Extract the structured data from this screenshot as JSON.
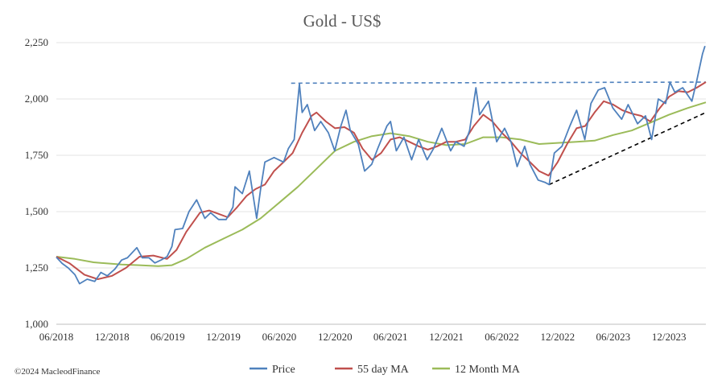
{
  "chart_data": {
    "type": "line",
    "title": "Gold - US$",
    "xlabel": "",
    "ylabel": "",
    "x_range": [
      "2018-06-01",
      "2024-03-31"
    ],
    "ylim": [
      1000,
      2250
    ],
    "y_ticks": [
      1000,
      1250,
      1500,
      1750,
      2000,
      2250
    ],
    "y_tick_labels": [
      "1,000",
      "1,250",
      "1,500",
      "1,750",
      "2,000",
      "2,250"
    ],
    "x_ticks": [
      "2018-06-01",
      "2018-12-01",
      "2019-06-01",
      "2019-12-01",
      "2020-06-01",
      "2020-12-01",
      "2021-06-01",
      "2021-12-01",
      "2022-06-01",
      "2022-12-01",
      "2023-06-01",
      "2023-12-01"
    ],
    "x_tick_labels": [
      "06/2018",
      "12/2018",
      "06/2019",
      "12/2019",
      "06/2020",
      "12/2020",
      "06/2021",
      "12/2021",
      "06/2022",
      "12/2022",
      "06/2023",
      "12/2023"
    ],
    "grid": "horizontal",
    "legend_position": "bottom",
    "series": [
      {
        "name": "Price",
        "color": "#4f81bd",
        "points": [
          [
            "2018-06-01",
            1298
          ],
          [
            "2018-06-20",
            1270
          ],
          [
            "2018-07-10",
            1250
          ],
          [
            "2018-08-01",
            1220
          ],
          [
            "2018-08-16",
            1180
          ],
          [
            "2018-09-10",
            1200
          ],
          [
            "2018-10-05",
            1190
          ],
          [
            "2018-10-25",
            1230
          ],
          [
            "2018-11-15",
            1215
          ],
          [
            "2018-12-10",
            1245
          ],
          [
            "2019-01-01",
            1285
          ],
          [
            "2019-01-20",
            1295
          ],
          [
            "2019-02-20",
            1340
          ],
          [
            "2019-03-10",
            1295
          ],
          [
            "2019-04-01",
            1295
          ],
          [
            "2019-04-20",
            1272
          ],
          [
            "2019-05-10",
            1285
          ],
          [
            "2019-05-30",
            1300
          ],
          [
            "2019-06-15",
            1345
          ],
          [
            "2019-06-25",
            1420
          ],
          [
            "2019-07-20",
            1425
          ],
          [
            "2019-08-10",
            1500
          ],
          [
            "2019-09-04",
            1552
          ],
          [
            "2019-10-01",
            1470
          ],
          [
            "2019-10-20",
            1495
          ],
          [
            "2019-11-15",
            1465
          ],
          [
            "2019-12-10",
            1465
          ],
          [
            "2020-01-01",
            1520
          ],
          [
            "2020-01-08",
            1610
          ],
          [
            "2020-02-01",
            1580
          ],
          [
            "2020-02-24",
            1680
          ],
          [
            "2020-03-19",
            1470
          ],
          [
            "2020-04-01",
            1600
          ],
          [
            "2020-04-15",
            1720
          ],
          [
            "2020-05-15",
            1740
          ],
          [
            "2020-06-15",
            1720
          ],
          [
            "2020-07-01",
            1780
          ],
          [
            "2020-07-20",
            1820
          ],
          [
            "2020-08-06",
            2067
          ],
          [
            "2020-08-15",
            1940
          ],
          [
            "2020-09-01",
            1975
          ],
          [
            "2020-09-25",
            1860
          ],
          [
            "2020-10-15",
            1900
          ],
          [
            "2020-11-09",
            1850
          ],
          [
            "2020-11-30",
            1770
          ],
          [
            "2020-12-20",
            1880
          ],
          [
            "2021-01-06",
            1950
          ],
          [
            "2021-01-20",
            1860
          ],
          [
            "2021-02-15",
            1800
          ],
          [
            "2021-03-08",
            1680
          ],
          [
            "2021-03-31",
            1710
          ],
          [
            "2021-04-20",
            1780
          ],
          [
            "2021-05-20",
            1880
          ],
          [
            "2021-06-01",
            1900
          ],
          [
            "2021-06-20",
            1770
          ],
          [
            "2021-07-15",
            1830
          ],
          [
            "2021-08-09",
            1730
          ],
          [
            "2021-09-01",
            1820
          ],
          [
            "2021-09-29",
            1730
          ],
          [
            "2021-10-20",
            1780
          ],
          [
            "2021-11-16",
            1870
          ],
          [
            "2021-12-15",
            1770
          ],
          [
            "2022-01-01",
            1810
          ],
          [
            "2022-01-28",
            1790
          ],
          [
            "2022-02-15",
            1860
          ],
          [
            "2022-03-08",
            2050
          ],
          [
            "2022-03-20",
            1930
          ],
          [
            "2022-04-18",
            1990
          ],
          [
            "2022-05-15",
            1810
          ],
          [
            "2022-06-10",
            1870
          ],
          [
            "2022-07-01",
            1810
          ],
          [
            "2022-07-21",
            1700
          ],
          [
            "2022-08-15",
            1790
          ],
          [
            "2022-09-01",
            1710
          ],
          [
            "2022-09-28",
            1640
          ],
          [
            "2022-10-20",
            1630
          ],
          [
            "2022-11-03",
            1620
          ],
          [
            "2022-11-20",
            1760
          ],
          [
            "2022-12-15",
            1790
          ],
          [
            "2023-01-10",
            1880
          ],
          [
            "2023-02-01",
            1950
          ],
          [
            "2023-02-28",
            1820
          ],
          [
            "2023-03-20",
            1980
          ],
          [
            "2023-04-13",
            2040
          ],
          [
            "2023-05-04",
            2050
          ],
          [
            "2023-05-31",
            1960
          ],
          [
            "2023-06-29",
            1910
          ],
          [
            "2023-07-20",
            1975
          ],
          [
            "2023-08-20",
            1890
          ],
          [
            "2023-09-15",
            1925
          ],
          [
            "2023-10-05",
            1820
          ],
          [
            "2023-10-27",
            2000
          ],
          [
            "2023-11-20",
            1980
          ],
          [
            "2023-12-04",
            2075
          ],
          [
            "2023-12-20",
            2030
          ],
          [
            "2024-01-15",
            2050
          ],
          [
            "2024-02-14",
            1990
          ],
          [
            "2024-03-01",
            2080
          ],
          [
            "2024-03-20",
            2200
          ],
          [
            "2024-03-28",
            2235
          ]
        ]
      },
      {
        "name": "55 day MA",
        "color": "#c0504d",
        "points": [
          [
            "2018-06-01",
            1300
          ],
          [
            "2018-07-15",
            1270
          ],
          [
            "2018-09-01",
            1220
          ],
          [
            "2018-10-15",
            1200
          ],
          [
            "2018-12-01",
            1215
          ],
          [
            "2019-01-15",
            1250
          ],
          [
            "2019-03-01",
            1300
          ],
          [
            "2019-04-15",
            1305
          ],
          [
            "2019-05-30",
            1290
          ],
          [
            "2019-06-30",
            1330
          ],
          [
            "2019-08-01",
            1410
          ],
          [
            "2019-09-15",
            1495
          ],
          [
            "2019-10-15",
            1505
          ],
          [
            "2019-11-15",
            1490
          ],
          [
            "2019-12-15",
            1475
          ],
          [
            "2020-01-15",
            1520
          ],
          [
            "2020-02-15",
            1570
          ],
          [
            "2020-03-15",
            1600
          ],
          [
            "2020-04-15",
            1620
          ],
          [
            "2020-05-15",
            1680
          ],
          [
            "2020-06-15",
            1720
          ],
          [
            "2020-07-15",
            1760
          ],
          [
            "2020-08-15",
            1850
          ],
          [
            "2020-09-15",
            1925
          ],
          [
            "2020-10-01",
            1940
          ],
          [
            "2020-11-01",
            1900
          ],
          [
            "2020-12-01",
            1870
          ],
          [
            "2021-01-01",
            1875
          ],
          [
            "2021-02-01",
            1850
          ],
          [
            "2021-03-01",
            1780
          ],
          [
            "2021-04-01",
            1730
          ],
          [
            "2021-05-01",
            1760
          ],
          [
            "2021-06-01",
            1820
          ],
          [
            "2021-07-01",
            1830
          ],
          [
            "2021-08-01",
            1810
          ],
          [
            "2021-09-01",
            1790
          ],
          [
            "2021-10-01",
            1775
          ],
          [
            "2021-11-01",
            1790
          ],
          [
            "2021-12-01",
            1810
          ],
          [
            "2022-01-01",
            1810
          ],
          [
            "2022-02-01",
            1820
          ],
          [
            "2022-03-01",
            1880
          ],
          [
            "2022-04-01",
            1930
          ],
          [
            "2022-05-01",
            1900
          ],
          [
            "2022-06-01",
            1850
          ],
          [
            "2022-07-01",
            1810
          ],
          [
            "2022-08-01",
            1760
          ],
          [
            "2022-09-01",
            1720
          ],
          [
            "2022-10-01",
            1680
          ],
          [
            "2022-11-01",
            1660
          ],
          [
            "2022-12-01",
            1720
          ],
          [
            "2023-01-01",
            1800
          ],
          [
            "2023-02-01",
            1870
          ],
          [
            "2023-03-01",
            1880
          ],
          [
            "2023-04-01",
            1940
          ],
          [
            "2023-05-01",
            1990
          ],
          [
            "2023-06-01",
            1975
          ],
          [
            "2023-07-01",
            1950
          ],
          [
            "2023-08-01",
            1935
          ],
          [
            "2023-09-01",
            1925
          ],
          [
            "2023-10-01",
            1900
          ],
          [
            "2023-11-01",
            1960
          ],
          [
            "2023-12-01",
            2010
          ],
          [
            "2024-01-01",
            2035
          ],
          [
            "2024-02-01",
            2030
          ],
          [
            "2024-03-01",
            2050
          ],
          [
            "2024-03-31",
            2075
          ]
        ]
      },
      {
        "name": "12 Month MA",
        "color": "#9bbb59",
        "points": [
          [
            "2018-06-01",
            1300
          ],
          [
            "2018-08-01",
            1290
          ],
          [
            "2018-10-01",
            1275
          ],
          [
            "2019-01-01",
            1265
          ],
          [
            "2019-03-01",
            1262
          ],
          [
            "2019-05-01",
            1258
          ],
          [
            "2019-06-15",
            1262
          ],
          [
            "2019-08-01",
            1290
          ],
          [
            "2019-10-01",
            1340
          ],
          [
            "2019-12-01",
            1380
          ],
          [
            "2020-02-01",
            1420
          ],
          [
            "2020-04-01",
            1470
          ],
          [
            "2020-06-01",
            1540
          ],
          [
            "2020-08-01",
            1610
          ],
          [
            "2020-10-01",
            1690
          ],
          [
            "2020-12-01",
            1770
          ],
          [
            "2021-02-01",
            1810
          ],
          [
            "2021-04-01",
            1835
          ],
          [
            "2021-06-01",
            1848
          ],
          [
            "2021-08-01",
            1835
          ],
          [
            "2021-10-01",
            1810
          ],
          [
            "2021-12-01",
            1795
          ],
          [
            "2022-02-01",
            1800
          ],
          [
            "2022-04-01",
            1830
          ],
          [
            "2022-06-01",
            1830
          ],
          [
            "2022-08-01",
            1820
          ],
          [
            "2022-10-01",
            1800
          ],
          [
            "2022-12-01",
            1805
          ],
          [
            "2023-02-01",
            1810
          ],
          [
            "2023-04-01",
            1815
          ],
          [
            "2023-06-01",
            1840
          ],
          [
            "2023-08-01",
            1860
          ],
          [
            "2023-10-01",
            1895
          ],
          [
            "2023-12-01",
            1930
          ],
          [
            "2024-02-01",
            1960
          ],
          [
            "2024-03-31",
            1985
          ]
        ]
      }
    ],
    "annotations": [
      {
        "type": "dashed-line",
        "name": "resistance-line",
        "color": "#4f81bd",
        "points": [
          [
            "2020-07-10",
            2070
          ],
          [
            "2024-03-31",
            2075
          ]
        ]
      },
      {
        "type": "dashed-line",
        "name": "support-trendline",
        "color": "#000000",
        "points": [
          [
            "2022-11-03",
            1620
          ],
          [
            "2024-03-31",
            1940
          ]
        ]
      }
    ]
  },
  "copyright": "©2024 MacleodFinance"
}
